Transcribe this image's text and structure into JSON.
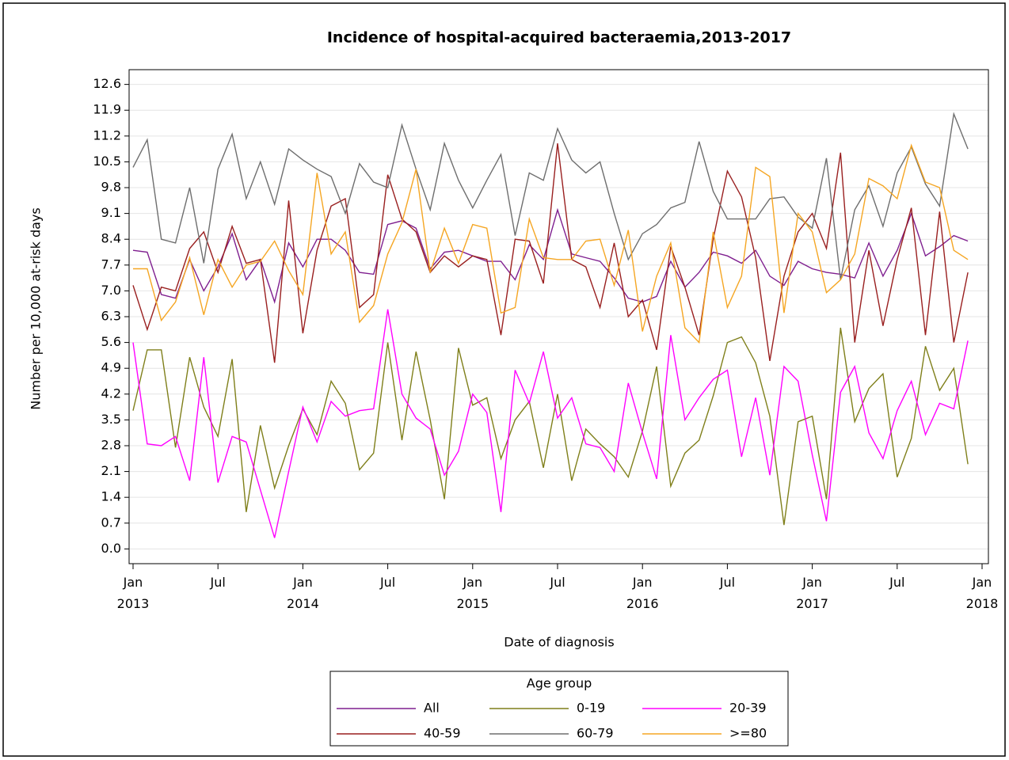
{
  "chart_data": {
    "type": "line",
    "title": "Incidence of hospital-acquired bacteraemia,2013-2017",
    "x_label": "Date of diagnosis",
    "y_label": "Number per 10,000 at-risk days",
    "x": [
      "2013-01",
      "2013-02",
      "2013-03",
      "2013-04",
      "2013-05",
      "2013-06",
      "2013-07",
      "2013-08",
      "2013-09",
      "2013-10",
      "2013-11",
      "2013-12",
      "2014-01",
      "2014-02",
      "2014-03",
      "2014-04",
      "2014-05",
      "2014-06",
      "2014-07",
      "2014-08",
      "2014-09",
      "2014-10",
      "2014-11",
      "2014-12",
      "2015-01",
      "2015-02",
      "2015-03",
      "2015-04",
      "2015-05",
      "2015-06",
      "2015-07",
      "2015-08",
      "2015-09",
      "2015-10",
      "2015-11",
      "2015-12",
      "2016-01",
      "2016-02",
      "2016-03",
      "2016-04",
      "2016-05",
      "2016-06",
      "2016-07",
      "2016-08",
      "2016-09",
      "2016-10",
      "2016-11",
      "2016-12",
      "2017-01",
      "2017-02",
      "2017-03",
      "2017-04",
      "2017-05",
      "2017-06",
      "2017-07",
      "2017-08",
      "2017-09",
      "2017-10",
      "2017-11",
      "2017-12"
    ],
    "xlim": [
      "2013-01",
      "2018-01"
    ],
    "xticks": [
      {
        "value": "2013-01",
        "label": "Jan 2013"
      },
      {
        "value": "2013-07",
        "label": "Jul"
      },
      {
        "value": "2014-01",
        "label": "Jan 2014"
      },
      {
        "value": "2014-07",
        "label": "Jul"
      },
      {
        "value": "2015-01",
        "label": "Jan 2015"
      },
      {
        "value": "2015-07",
        "label": "Jul"
      },
      {
        "value": "2016-01",
        "label": "Jan 2016"
      },
      {
        "value": "2016-07",
        "label": "Jul"
      },
      {
        "value": "2017-01",
        "label": "Jan 2017"
      },
      {
        "value": "2017-07",
        "label": "Jul"
      },
      {
        "value": "2018-01",
        "label": "Jan 2018"
      }
    ],
    "ylim": [
      -0.4,
      13.0
    ],
    "yticks": [
      {
        "value": 0,
        "label": "0.0"
      },
      0.7,
      1.4,
      2.1,
      2.8,
      3.5,
      4.2,
      4.9,
      5.6,
      6.3,
      {
        "value": 7,
        "label": "7.0"
      },
      7.7,
      8.4,
      9.1,
      9.8,
      10.5,
      11.2,
      11.9,
      12.6
    ],
    "grid": true,
    "legend_title": "Age group",
    "series": [
      {
        "name": "All",
        "color": "#7f1f8f",
        "values": [
          8.1,
          8.05,
          6.9,
          6.8,
          7.85,
          7.0,
          7.65,
          8.55,
          7.3,
          7.85,
          6.7,
          8.3,
          7.65,
          8.4,
          8.4,
          8.1,
          7.5,
          7.45,
          8.8,
          8.9,
          8.7,
          7.6,
          8.05,
          8.1,
          7.95,
          7.8,
          7.8,
          7.3,
          8.25,
          7.85,
          9.2,
          8.0,
          7.9,
          7.8,
          7.35,
          6.8,
          6.7,
          6.85,
          7.8,
          7.1,
          7.5,
          8.05,
          7.95,
          7.75,
          8.1,
          7.4,
          7.15,
          7.8,
          7.6,
          7.5,
          7.45,
          7.35,
          8.3,
          7.4,
          8.1,
          9.1,
          7.95,
          8.2,
          8.5,
          8.35
        ]
      },
      {
        "name": "0-19",
        "color": "#7f7f1a",
        "values": [
          3.75,
          5.4,
          5.4,
          2.75,
          5.2,
          3.85,
          3.05,
          5.15,
          1.0,
          3.35,
          1.65,
          2.8,
          3.8,
          3.1,
          4.55,
          3.95,
          2.15,
          2.6,
          5.6,
          2.95,
          5.35,
          3.5,
          1.35,
          5.45,
          3.9,
          4.1,
          2.45,
          3.5,
          4.0,
          2.2,
          4.2,
          1.85,
          3.25,
          2.85,
          2.5,
          1.95,
          3.2,
          4.95,
          1.7,
          2.6,
          2.95,
          4.15,
          5.6,
          5.75,
          5.05,
          3.6,
          0.65,
          3.45,
          3.6,
          1.35,
          6.0,
          3.45,
          4.35,
          4.75,
          1.95,
          3.0,
          5.5,
          4.3,
          4.9,
          2.3
        ]
      },
      {
        "name": "20-39",
        "color": "#ff00ff",
        "values": [
          5.6,
          2.85,
          2.8,
          3.05,
          1.85,
          5.2,
          1.8,
          3.05,
          2.9,
          1.6,
          0.3,
          2.1,
          3.85,
          2.9,
          4.0,
          3.6,
          3.75,
          3.8,
          6.5,
          4.2,
          3.55,
          3.25,
          2.0,
          2.65,
          4.2,
          3.7,
          1.0,
          4.85,
          3.95,
          5.35,
          3.55,
          4.1,
          2.85,
          2.75,
          2.1,
          4.5,
          3.15,
          1.9,
          5.8,
          3.5,
          4.1,
          4.6,
          4.85,
          2.5,
          4.1,
          2.0,
          4.95,
          4.55,
          2.55,
          0.75,
          4.25,
          4.95,
          3.15,
          2.45,
          3.75,
          4.55,
          3.1,
          3.95,
          3.8,
          5.65
        ]
      },
      {
        "name": "40-59",
        "color": "#991f1f",
        "values": [
          7.15,
          5.95,
          7.1,
          7.0,
          8.15,
          8.6,
          7.5,
          8.75,
          7.75,
          7.85,
          5.05,
          9.45,
          5.85,
          8.1,
          9.3,
          9.5,
          6.55,
          6.9,
          10.15,
          8.95,
          8.6,
          7.5,
          7.95,
          7.65,
          7.95,
          7.85,
          5.8,
          8.4,
          8.35,
          7.2,
          11.0,
          7.85,
          7.65,
          6.55,
          8.3,
          6.3,
          6.75,
          5.4,
          8.2,
          7.1,
          5.8,
          8.4,
          10.25,
          9.55,
          7.9,
          5.1,
          7.4,
          8.6,
          9.1,
          8.15,
          10.75,
          5.6,
          8.1,
          6.05,
          7.85,
          9.25,
          5.8,
          9.15,
          5.6,
          7.5
        ]
      },
      {
        "name": "60-79",
        "color": "#6e6e6e",
        "values": [
          10.35,
          11.1,
          8.4,
          8.3,
          9.8,
          7.75,
          10.3,
          11.25,
          9.5,
          10.5,
          9.35,
          10.85,
          10.55,
          10.3,
          10.1,
          9.1,
          10.45,
          9.95,
          9.8,
          11.5,
          10.3,
          9.2,
          11.0,
          10.0,
          9.25,
          10.0,
          10.7,
          8.5,
          10.2,
          10.0,
          11.4,
          10.55,
          10.2,
          10.5,
          9.1,
          7.85,
          8.55,
          8.8,
          9.25,
          9.4,
          11.05,
          9.7,
          8.95,
          8.95,
          8.95,
          9.5,
          9.55,
          9.0,
          8.7,
          10.6,
          7.3,
          9.2,
          9.85,
          8.75,
          10.2,
          10.9,
          9.9,
          9.3,
          11.8,
          10.85
        ]
      },
      {
        "name": ">=80",
        "color": "#f5a623",
        "values": [
          7.6,
          7.6,
          6.2,
          6.7,
          7.9,
          6.35,
          7.85,
          7.1,
          7.7,
          7.8,
          8.35,
          7.55,
          6.9,
          10.2,
          8.0,
          8.6,
          6.15,
          6.6,
          8.0,
          8.85,
          10.3,
          7.5,
          8.7,
          7.75,
          8.8,
          8.7,
          6.4,
          6.55,
          8.95,
          7.9,
          7.85,
          7.85,
          8.35,
          8.4,
          7.15,
          8.65,
          5.9,
          7.4,
          8.3,
          6.0,
          5.6,
          8.6,
          6.55,
          7.4,
          10.35,
          10.1,
          6.4,
          9.1,
          8.6,
          6.95,
          7.3,
          8.0,
          10.05,
          9.85,
          9.5,
          10.95,
          9.95,
          9.8,
          8.1,
          7.85
        ]
      }
    ]
  }
}
